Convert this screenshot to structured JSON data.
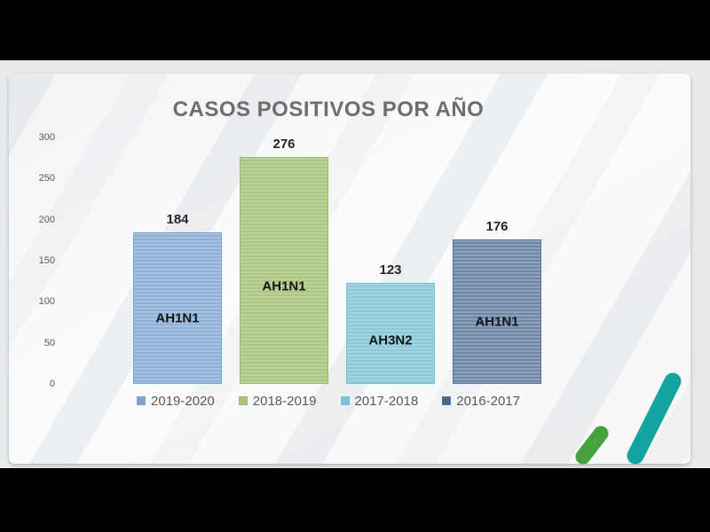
{
  "slide": {
    "background_outer": "#e8eaec",
    "background_card": "#fbfcfd",
    "letterbox_color": "#000000"
  },
  "chart_data": {
    "type": "bar",
    "title": "CASOS POSITIVOS POR AÑO",
    "categories": [
      "2019-2020",
      "2018-2019",
      "2017-2018",
      "2016-2017"
    ],
    "values": [
      184,
      276,
      123,
      176
    ],
    "bar_text_labels": [
      "AH1N1",
      "AH1N1",
      "AH3N2",
      "AH1N1"
    ],
    "xlabel": "",
    "ylabel": "",
    "ylim": [
      0,
      300
    ],
    "grid": false,
    "legend_position": "bottom",
    "y_ticks": [
      300,
      250,
      200,
      150,
      100,
      50,
      0
    ],
    "bars": [
      {
        "year": "2019-2020",
        "value": 184,
        "strain": "AH1N1",
        "stripe_light": "#a7c1e2",
        "stripe_dark": "#8fb0d8",
        "border": "#7fa3cf",
        "legend_color": "#7da3ce"
      },
      {
        "year": "2018-2019",
        "value": 276,
        "strain": "AH1N1",
        "stripe_light": "#bdd29a",
        "stripe_dark": "#abc480",
        "border": "#9cb86e",
        "legend_color": "#a9c47d"
      },
      {
        "year": "2017-2018",
        "value": 123,
        "strain": "AH3N2",
        "stripe_light": "#a3d5df",
        "stripe_dark": "#8accd8",
        "border": "#76c2d0",
        "legend_color": "#72c5d4"
      },
      {
        "year": "2016-2017",
        "value": 176,
        "strain": "AH1N1",
        "stripe_light": "#8ca1bd",
        "stripe_dark": "#6e87a7",
        "border": "#5b7499",
        "legend_color": "#47678e"
      }
    ]
  },
  "deco": {
    "green_stroke": "#45a33c",
    "teal_stroke": "#13a3a0"
  }
}
